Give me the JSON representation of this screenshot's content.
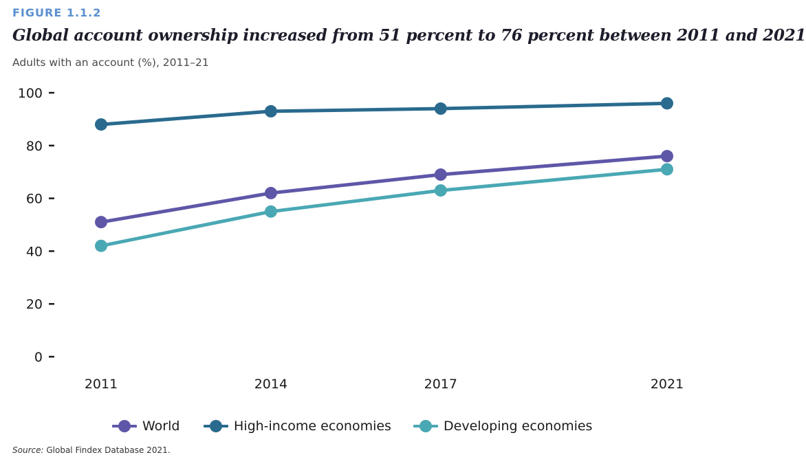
{
  "figure_label": "FIGURE 1.1.2",
  "title": "Global account ownership increased from 51 percent to 76 percent between 2011 and 2021",
  "subtitle": "Adults with an account (%), 2011–21",
  "source_label": "Source:",
  "source_text": " Global Findex Database 2021.",
  "chart_data": {
    "type": "line",
    "x": [
      "2011",
      "2014",
      "2017",
      "2021"
    ],
    "x_numeric": [
      2011,
      2014,
      2017,
      2021
    ],
    "ylim": [
      0,
      100
    ],
    "y_ticks": [
      "0",
      "20",
      "40",
      "60",
      "80",
      "100"
    ],
    "grid": false,
    "legend_position": "bottom",
    "series": [
      {
        "name": "World",
        "color": "#5e57a8",
        "values": [
          51,
          62,
          69,
          76
        ]
      },
      {
        "name": "High-income economies",
        "color": "#2a6a8e",
        "values": [
          88,
          93,
          94,
          96
        ]
      },
      {
        "name": "Developing economies",
        "color": "#4aa8b4",
        "values": [
          42,
          55,
          63,
          71
        ]
      }
    ]
  }
}
